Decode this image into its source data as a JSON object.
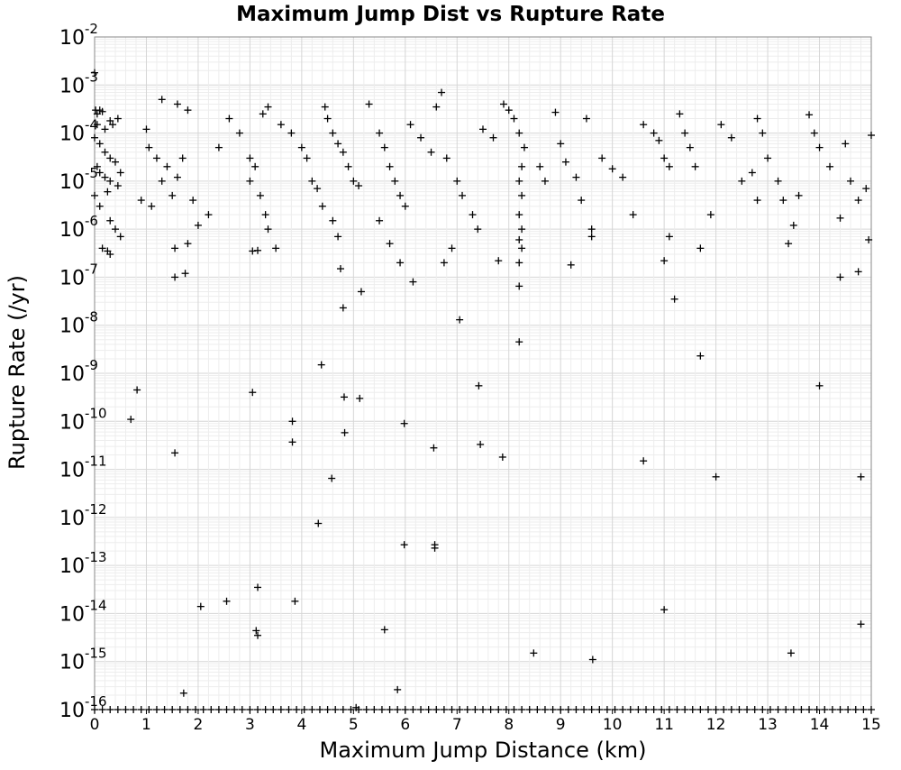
{
  "chart_data": {
    "type": "scatter",
    "title": "Maximum Jump Dist vs Rupture Rate",
    "xlabel": "Maximum Jump Distance (km)",
    "ylabel": "Rupture Rate (/yr)",
    "xlim": [
      0,
      15
    ],
    "ylim": [
      1e-16,
      0.01
    ],
    "yscale": "log",
    "marker": "plus",
    "marker_color": "#000000",
    "grid": true,
    "x_ticks": [
      "0",
      "1",
      "2",
      "3",
      "4",
      "5",
      "6",
      "7",
      "8",
      "9",
      "10",
      "11",
      "12",
      "13",
      "14",
      "15"
    ],
    "y_ticks": [
      {
        "base": "10",
        "exp": "-2"
      },
      {
        "base": "10",
        "exp": "-3"
      },
      {
        "base": "10",
        "exp": "-4"
      },
      {
        "base": "10",
        "exp": "-5"
      },
      {
        "base": "10",
        "exp": "-6"
      },
      {
        "base": "10",
        "exp": "-7"
      },
      {
        "base": "10",
        "exp": "-8"
      },
      {
        "base": "10",
        "exp": "-9"
      },
      {
        "base": "10",
        "exp": "-10"
      },
      {
        "base": "10",
        "exp": "-11"
      },
      {
        "base": "10",
        "exp": "-12"
      },
      {
        "base": "10",
        "exp": "-13"
      },
      {
        "base": "10",
        "exp": "-14"
      },
      {
        "base": "10",
        "exp": "-15"
      },
      {
        "base": "10",
        "exp": "-16"
      }
    ],
    "points": [
      [
        0.0,
        0.0018
      ],
      [
        0.02,
        0.0003
      ],
      [
        0.05,
        0.00025
      ],
      [
        0.1,
        0.0003
      ],
      [
        0.15,
        0.00028
      ],
      [
        0.05,
        0.00015
      ],
      [
        0.2,
        0.00012
      ],
      [
        0.3,
        0.00018
      ],
      [
        0.35,
        0.00015
      ],
      [
        0.45,
        0.0002
      ],
      [
        0.0,
        8e-05
      ],
      [
        0.1,
        6e-05
      ],
      [
        0.2,
        4e-05
      ],
      [
        0.3,
        3e-05
      ],
      [
        0.4,
        2.5e-05
      ],
      [
        0.1,
        1.5e-05
      ],
      [
        0.2,
        1.2e-05
      ],
      [
        0.3,
        1e-05
      ],
      [
        0.45,
        8e-06
      ],
      [
        0.0,
        5e-06
      ],
      [
        0.1,
        3e-06
      ],
      [
        0.3,
        1.5e-06
      ],
      [
        0.4,
        1e-06
      ],
      [
        0.5,
        7e-07
      ],
      [
        0.15,
        4e-07
      ],
      [
        0.3,
        3e-07
      ],
      [
        0.25,
        3.5e-07
      ],
      [
        0.05,
        2e-05
      ],
      [
        0.25,
        6e-06
      ],
      [
        0.5,
        1.5e-05
      ],
      [
        1.0,
        0.00012
      ],
      [
        1.3,
        0.0005
      ],
      [
        1.6,
        0.0004
      ],
      [
        1.8,
        0.0003
      ],
      [
        1.05,
        5e-05
      ],
      [
        1.2,
        3e-05
      ],
      [
        1.4,
        2e-05
      ],
      [
        1.6,
        1.2e-05
      ],
      [
        0.9,
        4e-06
      ],
      [
        1.1,
        3e-06
      ],
      [
        1.3,
        1e-05
      ],
      [
        1.5,
        5e-06
      ],
      [
        1.7,
        3e-05
      ],
      [
        1.9,
        4e-06
      ],
      [
        2.0,
        1.2e-06
      ],
      [
        1.55,
        4e-07
      ],
      [
        1.8,
        5e-07
      ],
      [
        2.2,
        2e-06
      ],
      [
        2.4,
        5e-05
      ],
      [
        2.6,
        0.0002
      ],
      [
        2.8,
        0.0001
      ],
      [
        3.0,
        3e-05
      ],
      [
        3.1,
        2e-05
      ],
      [
        3.25,
        0.00025
      ],
      [
        3.35,
        0.00035
      ],
      [
        3.0,
        1e-05
      ],
      [
        3.2,
        5e-06
      ],
      [
        3.3,
        2e-06
      ],
      [
        3.35,
        1e-06
      ],
      [
        3.5,
        4e-07
      ],
      [
        3.05,
        3.5e-07
      ],
      [
        3.15,
        3.6e-07
      ],
      [
        3.6,
        0.00015
      ],
      [
        3.8,
        0.0001
      ],
      [
        4.0,
        5e-05
      ],
      [
        4.1,
        3e-05
      ],
      [
        4.2,
        1e-05
      ],
      [
        4.3,
        7e-06
      ],
      [
        4.45,
        0.00035
      ],
      [
        4.5,
        0.0002
      ],
      [
        4.6,
        0.0001
      ],
      [
        4.7,
        6e-05
      ],
      [
        4.8,
        4e-05
      ],
      [
        4.9,
        2e-05
      ],
      [
        5.0,
        1e-05
      ],
      [
        5.1,
        8e-06
      ],
      [
        4.4,
        3e-06
      ],
      [
        4.6,
        1.5e-06
      ],
      [
        4.7,
        7e-07
      ],
      [
        4.75,
        1.5e-07
      ],
      [
        5.3,
        0.0004
      ],
      [
        5.5,
        0.0001
      ],
      [
        5.6,
        5e-05
      ],
      [
        5.7,
        2e-05
      ],
      [
        5.8,
        1e-05
      ],
      [
        5.9,
        5e-06
      ],
      [
        6.0,
        3e-06
      ],
      [
        5.5,
        1.5e-06
      ],
      [
        5.7,
        5e-07
      ],
      [
        5.9,
        2e-07
      ],
      [
        6.1,
        0.00015
      ],
      [
        6.3,
        8e-05
      ],
      [
        6.5,
        4e-05
      ],
      [
        6.6,
        0.00035
      ],
      [
        6.7,
        0.0007
      ],
      [
        6.8,
        3e-05
      ],
      [
        7.0,
        1e-05
      ],
      [
        7.1,
        5e-06
      ],
      [
        7.3,
        2e-06
      ],
      [
        7.4,
        1e-06
      ],
      [
        6.9,
        4e-07
      ],
      [
        6.75,
        2e-07
      ],
      [
        7.5,
        0.00012
      ],
      [
        7.7,
        8e-05
      ],
      [
        7.9,
        0.0004
      ],
      [
        8.0,
        0.0003
      ],
      [
        8.1,
        0.0002
      ],
      [
        8.2,
        0.0001
      ],
      [
        8.3,
        5e-05
      ],
      [
        8.25,
        2e-05
      ],
      [
        8.2,
        1e-05
      ],
      [
        8.25,
        5e-06
      ],
      [
        8.2,
        2e-06
      ],
      [
        8.25,
        1e-06
      ],
      [
        8.2,
        6e-07
      ],
      [
        8.25,
        4e-07
      ],
      [
        8.2,
        2e-07
      ],
      [
        8.2,
        6.5e-08
      ],
      [
        7.8,
        2.2e-07
      ],
      [
        8.6,
        2e-05
      ],
      [
        8.7,
        1e-05
      ],
      [
        8.9,
        0.00027
      ],
      [
        9.0,
        6e-05
      ],
      [
        9.1,
        2.5e-05
      ],
      [
        9.3,
        1.2e-05
      ],
      [
        9.5,
        0.0002
      ],
      [
        9.4,
        4e-06
      ],
      [
        9.6,
        1e-06
      ],
      [
        9.6,
        7e-07
      ],
      [
        9.2,
        1.8e-07
      ],
      [
        9.8,
        3e-05
      ],
      [
        10.0,
        1.8e-05
      ],
      [
        10.2,
        1.2e-05
      ],
      [
        10.4,
        2e-06
      ],
      [
        10.6,
        0.00015
      ],
      [
        10.8,
        0.0001
      ],
      [
        10.9,
        7e-05
      ],
      [
        11.0,
        3e-05
      ],
      [
        11.1,
        2e-05
      ],
      [
        11.3,
        0.00025
      ],
      [
        11.4,
        0.0001
      ],
      [
        11.5,
        5e-05
      ],
      [
        11.6,
        2e-05
      ],
      [
        11.1,
        7e-07
      ],
      [
        11.0,
        2.2e-07
      ],
      [
        11.2,
        3.5e-08
      ],
      [
        11.7,
        4e-07
      ],
      [
        11.9,
        2e-06
      ],
      [
        12.1,
        0.00015
      ],
      [
        12.3,
        8e-05
      ],
      [
        12.5,
        1e-05
      ],
      [
        12.7,
        1.5e-05
      ],
      [
        12.8,
        4e-06
      ],
      [
        12.8,
        0.0002
      ],
      [
        12.9,
        0.0001
      ],
      [
        13.0,
        3e-05
      ],
      [
        13.2,
        1e-05
      ],
      [
        13.3,
        4e-06
      ],
      [
        13.4,
        5e-07
      ],
      [
        13.5,
        1.2e-06
      ],
      [
        13.6,
        5e-06
      ],
      [
        13.8,
        0.00024
      ],
      [
        13.9,
        0.0001
      ],
      [
        14.0,
        5e-05
      ],
      [
        14.2,
        2e-05
      ],
      [
        14.4,
        1.7e-06
      ],
      [
        14.5,
        6e-05
      ],
      [
        14.6,
        1e-05
      ],
      [
        14.75,
        4e-06
      ],
      [
        14.9,
        7e-06
      ],
      [
        15.0,
        9e-05
      ],
      [
        14.95,
        6e-07
      ],
      [
        14.75,
        1.3e-07
      ],
      [
        14.4,
        1e-07
      ],
      [
        0.7,
        1.1e-10
      ],
      [
        0.82,
        4.5e-10
      ],
      [
        1.55,
        2.2e-11
      ],
      [
        1.75,
        1.2e-07
      ],
      [
        1.55,
        1e-07
      ],
      [
        2.05,
        1.4e-14
      ],
      [
        2.55,
        1.8e-14
      ],
      [
        1.72,
        2.2e-16
      ],
      [
        3.05,
        4e-10
      ],
      [
        3.15,
        3.5e-15
      ],
      [
        3.12,
        4.4e-15
      ],
      [
        3.15,
        3.5e-14
      ],
      [
        3.82,
        1e-10
      ],
      [
        3.82,
        3.7e-11
      ],
      [
        3.87,
        1.8e-14
      ],
      [
        4.32,
        7.5e-13
      ],
      [
        4.38,
        1.5e-09
      ],
      [
        4.58,
        6.5e-12
      ],
      [
        4.8,
        2.3e-08
      ],
      [
        4.82,
        3.2e-10
      ],
      [
        4.83,
        5.8e-11
      ],
      [
        5.15,
        5e-08
      ],
      [
        5.12,
        3e-10
      ],
      [
        5.6,
        4.6e-15
      ],
      [
        5.85,
        2.6e-16
      ],
      [
        5.98,
        2.7e-13
      ],
      [
        5.98,
        9e-11
      ],
      [
        6.15,
        8e-08
      ],
      [
        6.57,
        2.7e-13
      ],
      [
        6.57,
        2.3e-13
      ],
      [
        6.55,
        2.8e-11
      ],
      [
        7.05,
        1.3e-08
      ],
      [
        7.42,
        5.5e-10
      ],
      [
        7.45,
        3.3e-11
      ],
      [
        7.88,
        1.8e-11
      ],
      [
        8.2,
        4.5e-09
      ],
      [
        8.48,
        1.5e-15
      ],
      [
        9.62,
        1.1e-15
      ],
      [
        10.6,
        1.5e-11
      ],
      [
        11.0,
        1.2e-14
      ],
      [
        11.7,
        2.3e-09
      ],
      [
        12.0,
        7e-12
      ],
      [
        13.45,
        1.5e-15
      ],
      [
        14.0,
        5.5e-10
      ],
      [
        14.8,
        6e-15
      ],
      [
        14.8,
        7e-12
      ],
      [
        5.05,
        1.1e-16
      ]
    ],
    "floor_points_x": [
      0.0,
      0.15,
      0.3,
      0.45,
      0.6,
      0.75,
      0.9,
      1.05,
      1.2,
      1.35,
      1.5,
      1.65,
      1.8,
      1.95,
      2.1,
      2.25,
      2.4,
      2.55,
      2.7,
      2.85,
      3.0,
      3.15,
      3.3,
      3.45,
      3.6,
      3.75,
      3.9,
      4.05,
      4.2,
      4.35,
      4.5,
      4.65,
      4.8,
      4.95,
      5.1,
      5.25,
      5.4,
      5.55,
      5.7,
      5.85,
      6.0,
      6.15,
      6.3,
      6.45,
      6.6,
      6.75,
      6.9,
      7.05,
      7.2,
      7.35,
      7.5,
      7.65,
      7.8,
      7.95,
      8.1,
      8.25,
      8.4,
      8.55,
      8.7,
      8.85,
      9.0,
      9.15,
      9.3,
      9.45,
      9.6,
      9.75,
      9.9,
      10.05,
      10.2,
      10.35,
      10.5,
      10.65,
      10.8,
      10.95,
      11.1,
      11.25,
      11.4,
      11.55,
      11.7,
      11.85,
      12.0,
      12.15,
      12.3,
      12.45,
      12.6,
      12.75,
      12.9,
      13.05,
      13.2,
      13.35,
      13.5,
      13.65,
      13.8,
      13.95,
      14.1,
      14.25,
      14.4,
      14.55,
      14.7,
      14.85,
      15.0
    ],
    "floor_value": 1e-16
  }
}
